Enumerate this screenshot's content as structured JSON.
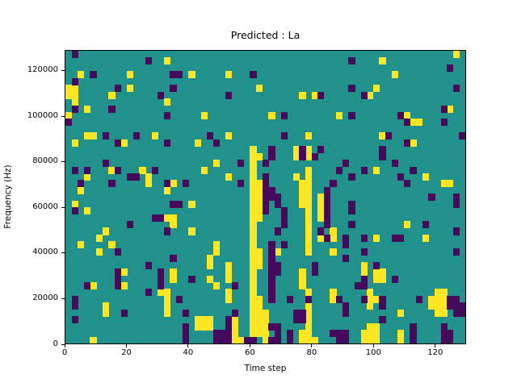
{
  "figure": {
    "title": "Predicted : La"
  },
  "chart_data": {
    "type": "heatmap",
    "title": "Predicted : La",
    "xlabel": "Time step",
    "ylabel": "Frequency (Hz)",
    "x_range": [
      0,
      130
    ],
    "y_range": [
      0,
      129000
    ],
    "x_ticks": [
      0,
      20,
      40,
      60,
      80,
      100,
      120
    ],
    "y_ticks": [
      0,
      20000,
      40000,
      60000,
      80000,
      100000,
      120000
    ],
    "grid": {
      "cols": 65,
      "rows": 43,
      "time_steps_per_cell": 2,
      "hz_per_cell": 3000
    },
    "colors": {
      "mid": "#21918c",
      "low": "#450a5c",
      "high": "#fde725"
    },
    "legend": "none",
    "value_meaning": {
      "mid": "background",
      "low": "dark-purple cell",
      "high": "yellow cell"
    },
    "cells_high": [
      [
        63,
        0
      ],
      [
        16,
        1
      ],
      [
        51,
        1
      ],
      [
        2,
        3
      ],
      [
        10,
        3
      ],
      [
        20,
        3
      ],
      [
        26,
        3
      ],
      [
        53,
        3
      ],
      [
        0,
        5
      ],
      [
        1,
        5
      ],
      [
        10,
        5
      ],
      [
        31,
        5
      ],
      [
        50,
        5
      ],
      [
        0,
        6
      ],
      [
        1,
        6
      ],
      [
        7,
        6
      ],
      [
        38,
        6
      ],
      [
        40,
        6
      ],
      [
        49,
        6
      ],
      [
        1,
        7
      ],
      [
        16,
        7
      ],
      [
        3,
        8
      ],
      [
        62,
        8
      ],
      [
        0,
        9
      ],
      [
        22,
        9
      ],
      [
        33,
        9
      ],
      [
        44,
        9
      ],
      [
        55,
        9
      ],
      [
        56,
        10
      ],
      [
        57,
        10
      ],
      [
        3,
        12
      ],
      [
        4,
        12
      ],
      [
        14,
        12
      ],
      [
        26,
        12
      ],
      [
        39,
        12
      ],
      [
        51,
        12
      ],
      [
        1,
        13
      ],
      [
        9,
        13
      ],
      [
        21,
        13
      ],
      [
        56,
        13
      ],
      [
        30,
        14
      ],
      [
        37,
        14
      ],
      [
        39,
        14
      ],
      [
        30,
        15
      ],
      [
        31,
        15
      ],
      [
        37,
        15
      ],
      [
        39,
        15
      ],
      [
        24,
        16
      ],
      [
        30,
        16
      ],
      [
        7,
        17
      ],
      [
        12,
        17
      ],
      [
        22,
        17
      ],
      [
        30,
        17
      ],
      [
        39,
        17
      ],
      [
        50,
        17
      ],
      [
        3,
        18
      ],
      [
        13,
        18
      ],
      [
        26,
        18
      ],
      [
        30,
        18
      ],
      [
        37,
        18
      ],
      [
        39,
        18
      ],
      [
        58,
        18
      ],
      [
        13,
        19
      ],
      [
        17,
        19
      ],
      [
        30,
        19
      ],
      [
        31,
        19
      ],
      [
        38,
        19
      ],
      [
        39,
        19
      ],
      [
        61,
        19
      ],
      [
        62,
        19
      ],
      [
        2,
        20
      ],
      [
        16,
        20
      ],
      [
        30,
        20
      ],
      [
        31,
        20
      ],
      [
        38,
        20
      ],
      [
        39,
        20
      ],
      [
        30,
        21
      ],
      [
        31,
        21
      ],
      [
        38,
        21
      ],
      [
        39,
        21
      ],
      [
        41,
        21
      ],
      [
        1,
        22
      ],
      [
        20,
        22
      ],
      [
        30,
        22
      ],
      [
        31,
        22
      ],
      [
        38,
        22
      ],
      [
        39,
        22
      ],
      [
        41,
        22
      ],
      [
        3,
        23
      ],
      [
        30,
        23
      ],
      [
        31,
        23
      ],
      [
        39,
        23
      ],
      [
        41,
        23
      ],
      [
        16,
        24
      ],
      [
        17,
        24
      ],
      [
        30,
        24
      ],
      [
        31,
        24
      ],
      [
        39,
        24
      ],
      [
        41,
        24
      ],
      [
        17,
        25
      ],
      [
        30,
        25
      ],
      [
        39,
        25
      ],
      [
        55,
        25
      ],
      [
        6,
        26
      ],
      [
        20,
        26
      ],
      [
        30,
        26
      ],
      [
        39,
        26
      ],
      [
        43,
        26
      ],
      [
        5,
        27
      ],
      [
        30,
        27
      ],
      [
        39,
        27
      ],
      [
        41,
        27
      ],
      [
        43,
        27
      ],
      [
        50,
        27
      ],
      [
        58,
        27
      ],
      [
        2,
        28
      ],
      [
        7,
        28
      ],
      [
        24,
        28
      ],
      [
        30,
        28
      ],
      [
        39,
        28
      ],
      [
        5,
        29
      ],
      [
        24,
        29
      ],
      [
        30,
        29
      ],
      [
        31,
        29
      ],
      [
        34,
        29
      ],
      [
        39,
        29
      ],
      [
        43,
        29
      ],
      [
        23,
        30
      ],
      [
        30,
        30
      ],
      [
        31,
        30
      ],
      [
        23,
        31
      ],
      [
        26,
        31
      ],
      [
        30,
        31
      ],
      [
        31,
        31
      ],
      [
        48,
        31
      ],
      [
        9,
        32
      ],
      [
        17,
        32
      ],
      [
        26,
        32
      ],
      [
        30,
        32
      ],
      [
        38,
        32
      ],
      [
        48,
        32
      ],
      [
        50,
        32
      ],
      [
        51,
        32
      ],
      [
        17,
        33
      ],
      [
        23,
        33
      ],
      [
        26,
        33
      ],
      [
        30,
        33
      ],
      [
        38,
        33
      ],
      [
        50,
        33
      ],
      [
        51,
        33
      ],
      [
        4,
        34
      ],
      [
        9,
        34
      ],
      [
        24,
        34
      ],
      [
        30,
        34
      ],
      [
        38,
        34
      ],
      [
        15,
        35
      ],
      [
        16,
        35
      ],
      [
        26,
        35
      ],
      [
        30,
        35
      ],
      [
        39,
        35
      ],
      [
        43,
        35
      ],
      [
        49,
        35
      ],
      [
        60,
        35
      ],
      [
        61,
        35
      ],
      [
        16,
        36
      ],
      [
        26,
        36
      ],
      [
        30,
        36
      ],
      [
        31,
        36
      ],
      [
        43,
        36
      ],
      [
        49,
        36
      ],
      [
        50,
        36
      ],
      [
        59,
        36
      ],
      [
        60,
        36
      ],
      [
        61,
        36
      ],
      [
        6,
        37
      ],
      [
        16,
        37
      ],
      [
        30,
        37
      ],
      [
        31,
        37
      ],
      [
        39,
        37
      ],
      [
        49,
        37
      ],
      [
        59,
        37
      ],
      [
        60,
        37
      ],
      [
        61,
        37
      ],
      [
        6,
        38
      ],
      [
        16,
        38
      ],
      [
        30,
        38
      ],
      [
        31,
        38
      ],
      [
        32,
        38
      ],
      [
        39,
        38
      ],
      [
        54,
        38
      ],
      [
        60,
        38
      ],
      [
        61,
        38
      ],
      [
        21,
        39
      ],
      [
        22,
        39
      ],
      [
        23,
        39
      ],
      [
        27,
        39
      ],
      [
        30,
        39
      ],
      [
        31,
        39
      ],
      [
        32,
        39
      ],
      [
        39,
        39
      ],
      [
        21,
        40
      ],
      [
        22,
        40
      ],
      [
        23,
        40
      ],
      [
        27,
        40
      ],
      [
        30,
        40
      ],
      [
        31,
        40
      ],
      [
        32,
        40
      ],
      [
        39,
        40
      ],
      [
        49,
        40
      ],
      [
        50,
        40
      ],
      [
        27,
        41
      ],
      [
        30,
        41
      ],
      [
        31,
        41
      ],
      [
        32,
        41
      ],
      [
        38,
        41
      ],
      [
        39,
        41
      ],
      [
        48,
        41
      ],
      [
        49,
        41
      ],
      [
        50,
        41
      ],
      [
        54,
        41
      ],
      [
        4,
        42
      ],
      [
        27,
        42
      ],
      [
        28,
        42
      ],
      [
        32,
        42
      ],
      [
        38,
        42
      ],
      [
        39,
        42
      ],
      [
        40,
        42
      ],
      [
        48,
        42
      ],
      [
        49,
        42
      ],
      [
        50,
        42
      ],
      [
        54,
        42
      ]
    ],
    "cells_low": [
      [
        1,
        0
      ],
      [
        13,
        1
      ],
      [
        46,
        1
      ],
      [
        62,
        2
      ],
      [
        4,
        3
      ],
      [
        17,
        3
      ],
      [
        18,
        3
      ],
      [
        30,
        3
      ],
      [
        1,
        4
      ],
      [
        8,
        5
      ],
      [
        17,
        5
      ],
      [
        46,
        5
      ],
      [
        63,
        5
      ],
      [
        15,
        6
      ],
      [
        26,
        6
      ],
      [
        41,
        6
      ],
      [
        48,
        6
      ],
      [
        1,
        8
      ],
      [
        7,
        8
      ],
      [
        61,
        8
      ],
      [
        16,
        9
      ],
      [
        35,
        9
      ],
      [
        46,
        9
      ],
      [
        54,
        9
      ],
      [
        0,
        10
      ],
      [
        55,
        10
      ],
      [
        61,
        10
      ],
      [
        6,
        12
      ],
      [
        11,
        12
      ],
      [
        23,
        12
      ],
      [
        35,
        12
      ],
      [
        52,
        12
      ],
      [
        64,
        12
      ],
      [
        8,
        13
      ],
      [
        16,
        13
      ],
      [
        24,
        13
      ],
      [
        55,
        13
      ],
      [
        33,
        14
      ],
      [
        38,
        14
      ],
      [
        41,
        14
      ],
      [
        51,
        14
      ],
      [
        33,
        15
      ],
      [
        38,
        15
      ],
      [
        40,
        15
      ],
      [
        51,
        15
      ],
      [
        6,
        16
      ],
      [
        28,
        16
      ],
      [
        32,
        16
      ],
      [
        45,
        16
      ],
      [
        53,
        16
      ],
      [
        1,
        17
      ],
      [
        3,
        17
      ],
      [
        8,
        17
      ],
      [
        14,
        17
      ],
      [
        44,
        17
      ],
      [
        48,
        17
      ],
      [
        56,
        17
      ],
      [
        10,
        18
      ],
      [
        11,
        18
      ],
      [
        32,
        18
      ],
      [
        46,
        18
      ],
      [
        54,
        18
      ],
      [
        2,
        19
      ],
      [
        7,
        19
      ],
      [
        16,
        19
      ],
      [
        19,
        19
      ],
      [
        28,
        19
      ],
      [
        32,
        19
      ],
      [
        43,
        19
      ],
      [
        55,
        19
      ],
      [
        32,
        20
      ],
      [
        33,
        20
      ],
      [
        42,
        20
      ],
      [
        32,
        21
      ],
      [
        33,
        21
      ],
      [
        34,
        21
      ],
      [
        42,
        21
      ],
      [
        59,
        21
      ],
      [
        63,
        21
      ],
      [
        17,
        22
      ],
      [
        18,
        22
      ],
      [
        32,
        22
      ],
      [
        34,
        22
      ],
      [
        42,
        22
      ],
      [
        46,
        22
      ],
      [
        63,
        22
      ],
      [
        1,
        23
      ],
      [
        32,
        23
      ],
      [
        35,
        23
      ],
      [
        42,
        23
      ],
      [
        46,
        23
      ],
      [
        14,
        24
      ],
      [
        15,
        24
      ],
      [
        35,
        24
      ],
      [
        42,
        24
      ],
      [
        10,
        25
      ],
      [
        35,
        25
      ],
      [
        42,
        25
      ],
      [
        46,
        25
      ],
      [
        58,
        25
      ],
      [
        16,
        26
      ],
      [
        34,
        26
      ],
      [
        41,
        26
      ],
      [
        63,
        26
      ],
      [
        42,
        27
      ],
      [
        45,
        27
      ],
      [
        48,
        27
      ],
      [
        53,
        27
      ],
      [
        54,
        27
      ],
      [
        33,
        28
      ],
      [
        35,
        28
      ],
      [
        45,
        28
      ],
      [
        8,
        29
      ],
      [
        33,
        29
      ],
      [
        48,
        29
      ],
      [
        63,
        29
      ],
      [
        17,
        30
      ],
      [
        33,
        30
      ],
      [
        45,
        30
      ],
      [
        13,
        31
      ],
      [
        33,
        31
      ],
      [
        34,
        31
      ],
      [
        40,
        31
      ],
      [
        50,
        31
      ],
      [
        8,
        32
      ],
      [
        15,
        32
      ],
      [
        33,
        32
      ],
      [
        34,
        32
      ],
      [
        40,
        32
      ],
      [
        8,
        33
      ],
      [
        15,
        33
      ],
      [
        20,
        33
      ],
      [
        33,
        33
      ],
      [
        48,
        33
      ],
      [
        53,
        33
      ],
      [
        3,
        34
      ],
      [
        8,
        34
      ],
      [
        15,
        34
      ],
      [
        27,
        34
      ],
      [
        33,
        34
      ],
      [
        47,
        34
      ],
      [
        48,
        34
      ],
      [
        13,
        35
      ],
      [
        33,
        35
      ],
      [
        1,
        36
      ],
      [
        18,
        36
      ],
      [
        33,
        36
      ],
      [
        36,
        36
      ],
      [
        39,
        36
      ],
      [
        44,
        36
      ],
      [
        48,
        36
      ],
      [
        51,
        36
      ],
      [
        57,
        36
      ],
      [
        62,
        36
      ],
      [
        63,
        36
      ],
      [
        1,
        37
      ],
      [
        45,
        37
      ],
      [
        51,
        37
      ],
      [
        62,
        37
      ],
      [
        63,
        37
      ],
      [
        64,
        37
      ],
      [
        9,
        38
      ],
      [
        19,
        38
      ],
      [
        27,
        38
      ],
      [
        37,
        38
      ],
      [
        38,
        38
      ],
      [
        45,
        38
      ],
      [
        63,
        38
      ],
      [
        64,
        38
      ],
      [
        1,
        39
      ],
      [
        26,
        39
      ],
      [
        37,
        39
      ],
      [
        38,
        39
      ],
      [
        51,
        39
      ],
      [
        19,
        40
      ],
      [
        26,
        40
      ],
      [
        33,
        40
      ],
      [
        34,
        40
      ],
      [
        56,
        40
      ],
      [
        61,
        40
      ],
      [
        19,
        41
      ],
      [
        24,
        41
      ],
      [
        25,
        41
      ],
      [
        26,
        41
      ],
      [
        34,
        41
      ],
      [
        36,
        41
      ],
      [
        43,
        41
      ],
      [
        44,
        41
      ],
      [
        45,
        41
      ],
      [
        56,
        41
      ],
      [
        61,
        41
      ],
      [
        62,
        41
      ],
      [
        19,
        42
      ],
      [
        24,
        42
      ],
      [
        25,
        42
      ],
      [
        26,
        42
      ],
      [
        29,
        42
      ],
      [
        30,
        42
      ],
      [
        33,
        42
      ],
      [
        34,
        42
      ],
      [
        36,
        42
      ],
      [
        44,
        42
      ],
      [
        45,
        42
      ],
      [
        56,
        42
      ],
      [
        61,
        42
      ],
      [
        62,
        42
      ]
    ]
  }
}
